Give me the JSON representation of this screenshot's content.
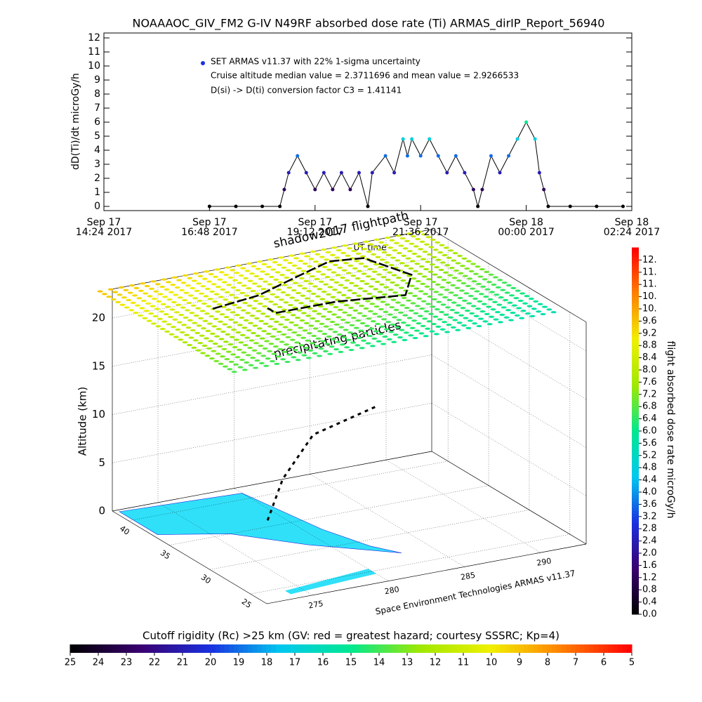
{
  "chart_data": [
    {
      "type": "line",
      "title": "NOAAAOC_GIV_FM2 G-IV    N49RF  absorbed dose rate (Ti) ARMAS_dirIP_Report_56940",
      "y_label": "dD(Ti)/dt microGy/h",
      "x_label": "UT time",
      "annotations": [
        "SET ARMAS v11.37 with 22% 1-sigma uncertainty",
        "Cruise altitude median value = 2.3711696 and mean value = 2.9266533",
        "D(si) -> D(ti) conversion factor C3 = 1.41141"
      ],
      "xlim": [
        14.4,
        26.4
      ],
      "xticks": [
        {
          "value": 14.4,
          "label": "Sep 17\n14:24 2017"
        },
        {
          "value": 16.8,
          "label": "Sep 17\n16:48 2017"
        },
        {
          "value": 19.2,
          "label": "Sep 17\n19:12 2017"
        },
        {
          "value": 21.6,
          "label": "Sep 17\n21:36 2017"
        },
        {
          "value": 24,
          "label": "Sep 18\n00:00 2017"
        },
        {
          "value": 26.4,
          "label": "Sep 18\n02:24 2017"
        }
      ],
      "ylim": [
        -0.3,
        12.35
      ],
      "yticks": [
        0,
        1,
        2,
        3,
        4,
        5,
        6,
        7,
        8,
        9,
        10,
        11,
        12
      ],
      "series": [
        {
          "name": "SET ARMAS v11.37 with 22% 1-sigma uncertainty",
          "color": "#000000",
          "marker_color": "#1a30e0",
          "x": [
            16.8,
            17.4,
            18.0,
            18.4,
            18.5,
            18.6,
            18.8,
            19.0,
            19.2,
            19.4,
            19.6,
            19.8,
            20.0,
            20.2,
            20.4,
            20.5,
            20.8,
            21.0,
            21.2,
            21.3,
            21.4,
            21.6,
            21.8,
            22.0,
            22.2,
            22.4,
            22.6,
            22.8,
            22.9,
            23.0,
            23.2,
            23.4,
            23.6,
            23.8,
            24.0,
            24.2,
            24.3,
            24.4,
            24.5,
            25.0,
            25.6,
            26.2
          ],
          "values": [
            0,
            0,
            0,
            0,
            1.2,
            2.4,
            3.6,
            2.4,
            1.2,
            2.4,
            1.2,
            2.4,
            1.2,
            2.4,
            0,
            2.4,
            3.6,
            2.4,
            4.8,
            3.6,
            4.8,
            3.6,
            4.8,
            3.6,
            2.4,
            3.6,
            2.4,
            1.2,
            0,
            1.2,
            3.6,
            2.4,
            3.6,
            4.8,
            6.0,
            4.8,
            2.4,
            1.2,
            0,
            0,
            0,
            0
          ]
        }
      ]
    },
    {
      "type": "surface3d",
      "z_label": "Altitude (km)",
      "zlim": [
        0,
        23
      ],
      "zticks": [
        0,
        5,
        10,
        15,
        20
      ],
      "latlim": [
        23,
        42
      ],
      "latticks": [
        40,
        35,
        30,
        25
      ],
      "lonlim": [
        272,
        293
      ],
      "lonticks": [
        275,
        280,
        285,
        290
      ],
      "annotations": [
        "shadow2017 flightpath",
        "precipitating particles",
        "Space Environment Technologies ARMAS v11.37"
      ]
    },
    {
      "type": "colorbar",
      "orientation": "vertical",
      "label": "flight absorbed dose rate microGy/h",
      "lim": [
        0,
        12
      ],
      "ticks": [
        {
          "value": 0,
          "label": "0.0"
        },
        0.4,
        0.8,
        1.2,
        1.6,
        {
          "value": 2,
          "label": "2.0"
        },
        2.4,
        2.8,
        3.2,
        3.6,
        {
          "value": 4,
          "label": "4.0"
        },
        4.4,
        4.8,
        5.2,
        5.6,
        {
          "value": 6,
          "label": "6.0"
        },
        6.4,
        6.8,
        7.2,
        7.6,
        {
          "value": 8,
          "label": "8.0"
        },
        8.4,
        8.8,
        9.2,
        9.6,
        {
          "value": 10,
          "label": "10."
        },
        {
          "value": 10.4,
          "label": "10."
        },
        {
          "value": 10.8,
          "label": "11."
        },
        {
          "value": 11.2,
          "label": "11."
        },
        {
          "value": 11.6,
          "label": "12."
        }
      ],
      "colormap": [
        "#000000",
        "#3a0070",
        "#1a30e0",
        "#00c8f0",
        "#00e890",
        "#a0e800",
        "#f0f000",
        "#ff8000",
        "#ff0000"
      ]
    },
    {
      "type": "colorbar",
      "orientation": "horizontal",
      "label": "Cutoff rigidity (Rc) >25 km (GV: red = greatest hazard; courtesy SSSRC; Kp=4)",
      "lim": [
        25,
        5
      ],
      "ticks": [
        25,
        24,
        23,
        22,
        21,
        20,
        19,
        18,
        17,
        16,
        15,
        14,
        13,
        12,
        11,
        10,
        9,
        8,
        7,
        6,
        5
      ],
      "colormap": [
        "#000000",
        "#3a0070",
        "#1a30e0",
        "#00c8f0",
        "#00e890",
        "#a0e800",
        "#f0f000",
        "#ff8000",
        "#ff0000"
      ]
    }
  ]
}
